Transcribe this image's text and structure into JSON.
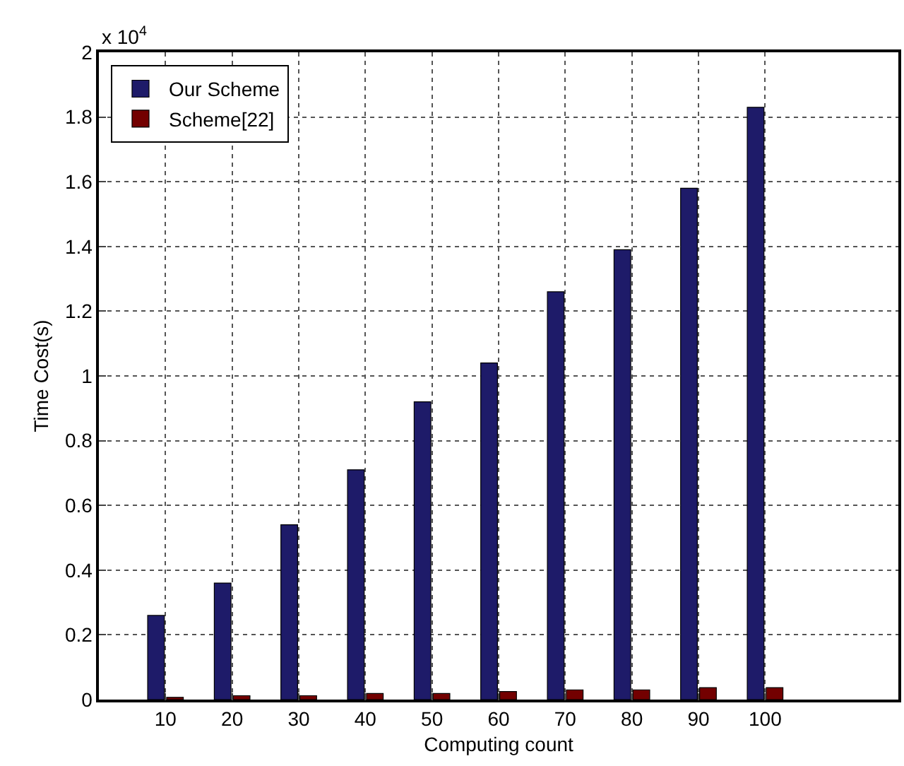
{
  "chart_data": {
    "type": "bar",
    "xlabel": "Computing count",
    "ylabel": "Time Cost(s)",
    "x": [
      10,
      20,
      30,
      40,
      50,
      60,
      70,
      80,
      90,
      100
    ],
    "series": [
      {
        "name": "Our Scheme",
        "color": "#1e1b69",
        "values": [
          0.26,
          0.36,
          0.54,
          0.71,
          0.92,
          1.04,
          1.26,
          1.39,
          1.58,
          1.83
        ]
      },
      {
        "name": "Scheme[22]",
        "color": "#730000",
        "values": [
          0.007,
          0.012,
          0.012,
          0.019,
          0.019,
          0.025,
          0.03,
          0.03,
          0.037,
          0.037
        ]
      }
    ],
    "xlim": [
      0,
      120
    ],
    "xticks": [
      10,
      20,
      30,
      40,
      50,
      60,
      70,
      80,
      90,
      100
    ],
    "ylim": [
      0,
      2
    ],
    "yticks": [
      0,
      0.2,
      0.4,
      0.6,
      0.8,
      1,
      1.2,
      1.4,
      1.6,
      1.8,
      2
    ],
    "annotations": [
      "x 10$^{4}$"
    ],
    "grid": true,
    "legend": "top left",
    "line_style": "dotted"
  }
}
